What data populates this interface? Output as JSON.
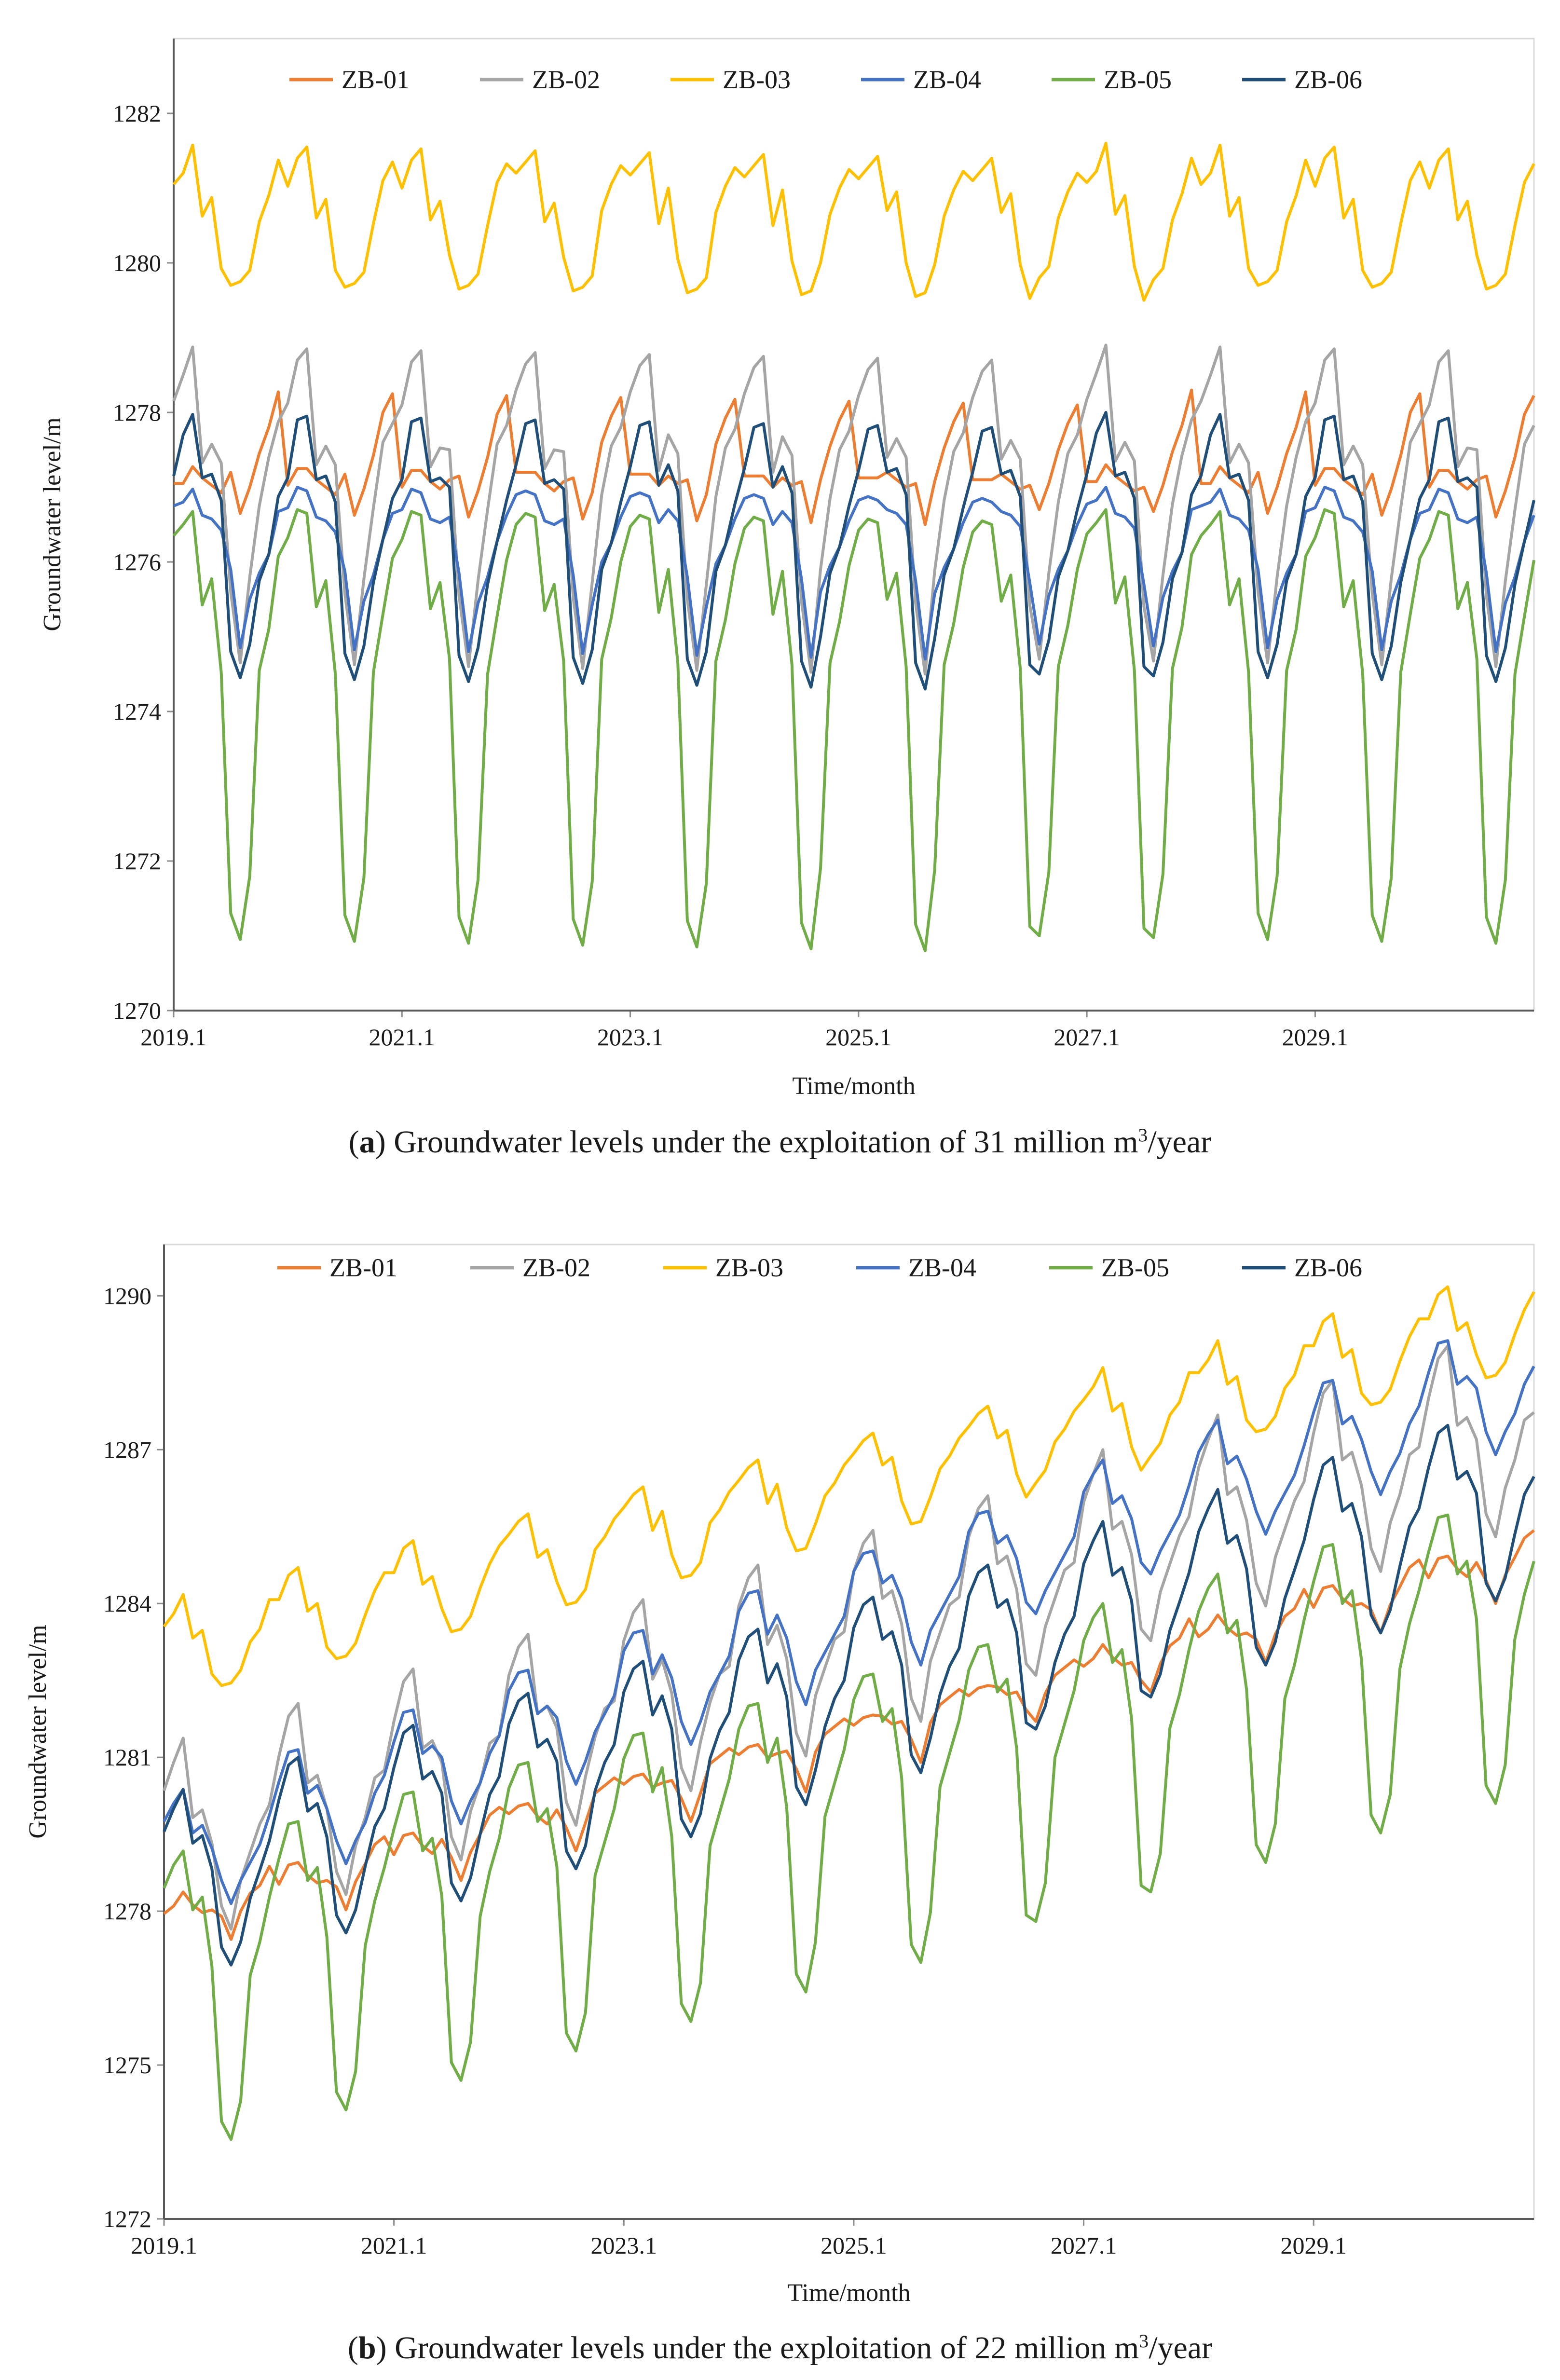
{
  "series_colors": {
    "ZB-01": "#ED7D31",
    "ZB-02": "#A5A5A5",
    "ZB-03": "#FFC000",
    "ZB-04": "#4472C4",
    "ZB-05": "#70AD47",
    "ZB-06": "#1F4E79"
  },
  "captions": {
    "a": {
      "letter": "a",
      "pre": "Groundwater levels under the exploitation of 31 million m",
      "sup": "3",
      "post": "/year"
    },
    "b": {
      "letter": "b",
      "pre": "Groundwater levels under the exploitation of 22 million m",
      "sup": "3",
      "post": "/year"
    }
  },
  "chart_data": [
    {
      "type": "line",
      "panel": "a",
      "title": "(a) Groundwater levels under the exploitation of 31 million m3/year",
      "xlabel": "Time/month",
      "ylabel": "Groundwater level/m",
      "x_ticks": [
        "2019.1",
        "2021.1",
        "2023.1",
        "2025.1",
        "2027.1",
        "2029.1"
      ],
      "y_ticks": [
        1270,
        1272,
        1274,
        1276,
        1278,
        1280,
        1282
      ],
      "ylim": [
        1270,
        1283
      ],
      "x_domain": [
        0,
        143
      ],
      "legend_position": "top",
      "series": [
        {
          "name": "ZB-01",
          "trend": 0,
          "pattern": [
            1277.1,
            1277.15,
            1277.2,
            1277.1,
            1277.05,
            1277.0,
            1277.1,
            1276.6,
            1277.0,
            1277.5,
            1277.9,
            1278.2
          ]
        },
        {
          "name": "ZB-02",
          "trend": 0,
          "pattern": [
            1278.2,
            1278.6,
            1278.8,
            1277.3,
            1277.6,
            1277.4,
            1275.5,
            1274.6,
            1275.8,
            1276.8,
            1277.5,
            1277.8
          ]
        },
        {
          "name": "ZB-03",
          "trend": 0,
          "pattern": [
            1281.1,
            1281.3,
            1281.5,
            1280.6,
            1280.9,
            1280.0,
            1279.6,
            1279.7,
            1279.9,
            1280.6,
            1281.0,
            1281.3
          ]
        },
        {
          "name": "ZB-04",
          "trend": 0,
          "pattern": [
            1276.8,
            1276.9,
            1276.9,
            1276.6,
            1276.6,
            1276.5,
            1275.8,
            1274.8,
            1275.5,
            1275.9,
            1276.2,
            1276.6
          ]
        },
        {
          "name": "ZB-05",
          "trend": 0,
          "pattern": [
            1276.4,
            1276.6,
            1276.6,
            1275.4,
            1275.8,
            1274.6,
            1271.2,
            1270.9,
            1271.8,
            1274.6,
            1275.2,
            1276.0
          ]
        },
        {
          "name": "ZB-06",
          "trend": 0,
          "pattern": [
            1277.2,
            1277.8,
            1277.9,
            1277.1,
            1277.2,
            1276.9,
            1274.7,
            1274.4,
            1274.9,
            1275.8,
            1276.2,
            1276.8
          ]
        }
      ]
    },
    {
      "type": "line",
      "panel": "b",
      "title": "(b) Groundwater levels under the exploitation of 22 million m3/year",
      "xlabel": "Time/month",
      "ylabel": "Groundwater level/m",
      "x_ticks": [
        "2019.1",
        "2021.1",
        "2023.1",
        "2025.1",
        "2027.1",
        "2029.1"
      ],
      "y_ticks": [
        1272,
        1275,
        1278,
        1281,
        1284,
        1287,
        1290
      ],
      "ylim": [
        1272,
        1291
      ],
      "x_domain": [
        0,
        143
      ],
      "legend_position": "top",
      "series": [
        {
          "name": "ZB-01",
          "trend": 0.6,
          "pattern": [
            1278.0,
            1278.2,
            1278.3,
            1278.1,
            1278.0,
            1278.1,
            1277.8,
            1277.4,
            1278.0,
            1278.4,
            1278.6,
            1278.8
          ]
        },
        {
          "name": "ZB-02",
          "trend": 0.7,
          "pattern": [
            1280.4,
            1281.0,
            1281.3,
            1279.8,
            1280.0,
            1279.4,
            1278.0,
            1277.6,
            1278.6,
            1279.2,
            1279.8,
            1280.0
          ]
        },
        {
          "name": "ZB-03",
          "trend": 0.55,
          "pattern": [
            1283.6,
            1283.9,
            1284.1,
            1283.3,
            1283.5,
            1282.7,
            1282.3,
            1282.4,
            1282.7,
            1283.3,
            1283.6,
            1284.0
          ]
        },
        {
          "name": "ZB-04",
          "trend": 0.8,
          "pattern": [
            1279.8,
            1280.2,
            1280.3,
            1279.5,
            1279.7,
            1279.3,
            1278.5,
            1278.1,
            1278.6,
            1279.0,
            1279.4,
            1279.8
          ]
        },
        {
          "name": "ZB-05",
          "trend": 0.6,
          "pattern": [
            1278.5,
            1279.0,
            1279.1,
            1278.0,
            1278.3,
            1277.0,
            1273.8,
            1273.5,
            1274.3,
            1276.8,
            1277.5,
            1278.2
          ]
        },
        {
          "name": "ZB-06",
          "trend": 0.65,
          "pattern": [
            1279.6,
            1280.1,
            1280.3,
            1279.3,
            1279.5,
            1278.9,
            1277.2,
            1276.9,
            1277.4,
            1278.3,
            1278.9,
            1279.3
          ]
        }
      ]
    }
  ]
}
